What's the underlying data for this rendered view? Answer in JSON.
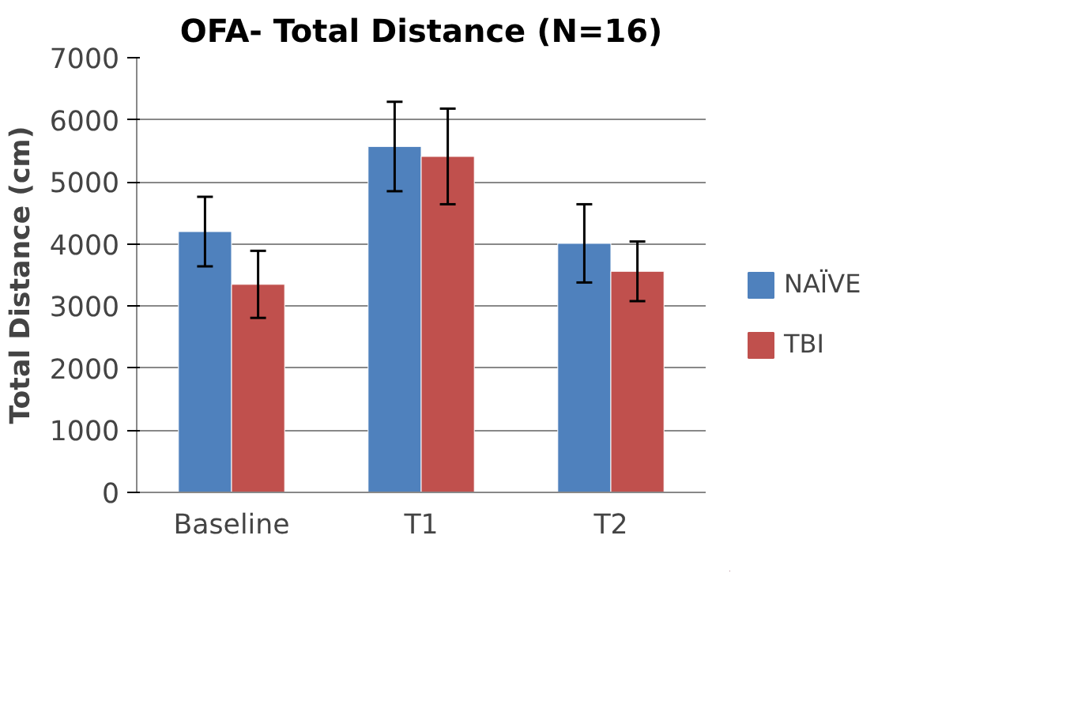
{
  "chart_data": {
    "type": "bar",
    "title": "OFA- Total Distance (N=16)",
    "ylabel": "Total Distance (cm)",
    "categories": [
      "Baseline",
      "T1",
      "T2"
    ],
    "series": [
      {
        "name": "NAÏVE",
        "color": "#4f81bd",
        "values": [
          4200,
          5570,
          4010
        ],
        "errors": [
          560,
          720,
          630
        ]
      },
      {
        "name": "TBI",
        "color": "#c0504d",
        "values": [
          3350,
          5410,
          3560
        ],
        "errors": [
          540,
          770,
          480
        ]
      }
    ],
    "ylim": [
      0,
      7000
    ],
    "yticks": [
      0,
      1000,
      2000,
      3000,
      4000,
      5000,
      6000,
      7000
    ],
    "grid": "y",
    "legend": "right"
  }
}
